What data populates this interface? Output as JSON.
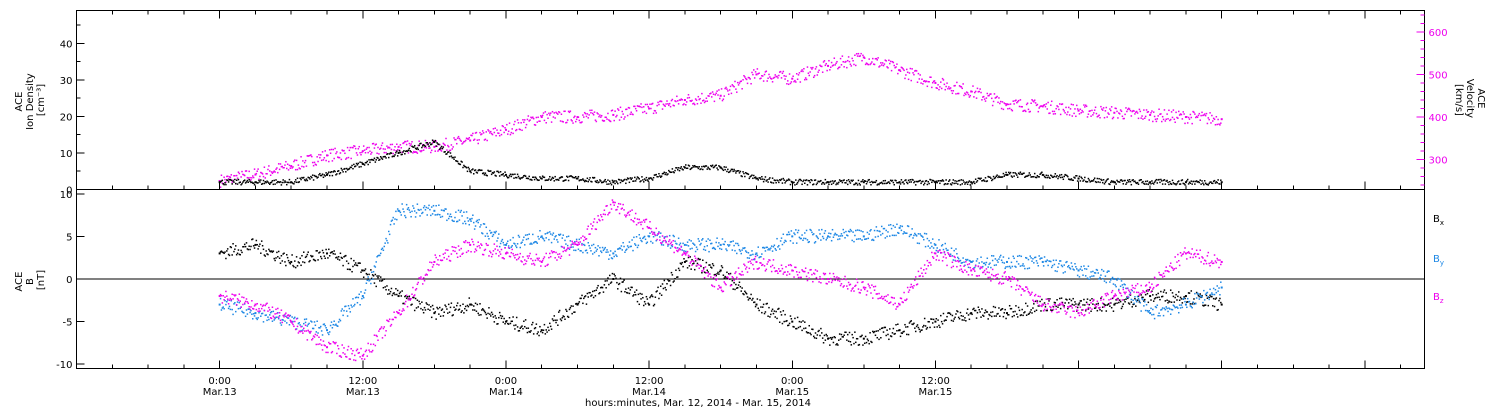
{
  "chart_data": [
    {
      "type": "scatter",
      "panel": "ACE plasma (top)",
      "ylabel_left": [
        "ACE",
        "Ion Density",
        "[cm⁻³]"
      ],
      "ylabel_right": [
        "ACE",
        "Velocity",
        "[km/s]"
      ],
      "ylim_left": [
        0,
        49
      ],
      "ylim_right": [
        230,
        650
      ],
      "yticks_left": [
        "0",
        "10",
        "20",
        "30",
        "40"
      ],
      "yticks_right": [
        "300",
        "400",
        "500",
        "600"
      ],
      "series": [
        {
          "axis": "left",
          "color": "#000000",
          "x": [
            0,
            3,
            6,
            9,
            12,
            15,
            18,
            21,
            24,
            27,
            30,
            33,
            36,
            39,
            42,
            45,
            48,
            51,
            54,
            57,
            60,
            63,
            66,
            69,
            72,
            75,
            78,
            81,
            84
          ],
          "y": [
            2,
            2,
            2,
            4,
            7,
            10,
            13,
            5,
            4,
            3,
            3,
            2,
            3,
            6,
            6,
            3,
            2,
            2,
            2,
            2,
            2,
            2,
            4,
            4,
            3,
            2,
            2,
            2,
            2
          ]
        },
        {
          "axis": "right",
          "color": "#ee00ee",
          "x": [
            0,
            3,
            6,
            9,
            12,
            15,
            18,
            21,
            24,
            27,
            30,
            33,
            36,
            39,
            42,
            45,
            48,
            51,
            54,
            57,
            60,
            63,
            66,
            69,
            72,
            75,
            78,
            81,
            84
          ],
          "y": [
            250,
            265,
            285,
            310,
            320,
            330,
            330,
            345,
            370,
            400,
            400,
            405,
            420,
            440,
            450,
            500,
            490,
            520,
            540,
            510,
            480,
            460,
            430,
            425,
            415,
            410,
            405,
            400,
            395
          ]
        }
      ]
    },
    {
      "type": "scatter",
      "panel": "ACE magnetic field (bottom)",
      "ylabel": [
        "ACE",
        "B",
        "[nT]"
      ],
      "ylim": [
        -10.5,
        10.5
      ],
      "yticks": [
        "-10",
        "-5",
        "0",
        "5",
        "10"
      ],
      "series": [
        {
          "name": "Bx",
          "color": "#000000",
          "x": [
            0,
            3,
            6,
            9,
            12,
            15,
            18,
            21,
            24,
            27,
            30,
            33,
            36,
            39,
            42,
            45,
            48,
            51,
            54,
            57,
            60,
            63,
            66,
            69,
            72,
            75,
            78,
            81,
            84
          ],
          "y": [
            3,
            4,
            2,
            3,
            1,
            -2,
            -4,
            -3,
            -5,
            -6,
            -3,
            0,
            -3,
            2,
            1,
            -3,
            -5,
            -7,
            -7,
            -6,
            -5,
            -4,
            -4,
            -3,
            -3,
            -3,
            -2,
            -2,
            -3
          ]
        },
        {
          "name": "By",
          "color": "#1e88e5",
          "x": [
            0,
            3,
            6,
            9,
            12,
            15,
            18,
            21,
            24,
            27,
            30,
            33,
            36,
            39,
            42,
            45,
            48,
            51,
            54,
            57,
            60,
            63,
            66,
            69,
            72,
            75,
            78,
            81,
            84
          ],
          "y": [
            -3,
            -4,
            -5,
            -6,
            -2,
            8,
            8,
            7,
            4,
            5,
            4,
            3,
            5,
            4,
            4,
            3,
            5,
            5,
            5,
            6,
            4,
            2,
            2,
            2,
            1,
            0,
            -4,
            -3,
            -1
          ]
        },
        {
          "name": "Bz",
          "color": "#ee00ee",
          "x": [
            0,
            3,
            6,
            9,
            12,
            15,
            18,
            21,
            24,
            27,
            30,
            33,
            36,
            39,
            42,
            45,
            48,
            51,
            54,
            57,
            60,
            63,
            66,
            69,
            72,
            75,
            78,
            81,
            84
          ],
          "y": [
            -2,
            -3,
            -5,
            -8,
            -9,
            -4,
            2,
            4,
            3,
            2,
            4,
            9,
            6,
            3,
            -1,
            2,
            1,
            0,
            -1,
            -3,
            3,
            1,
            0,
            -3,
            -4,
            -2,
            -1,
            3,
            2
          ]
        }
      ]
    }
  ],
  "legend": {
    "bx": {
      "main": "B",
      "sub": "x"
    },
    "by": {
      "main": "B",
      "sub": "y"
    },
    "bz": {
      "main": "B",
      "sub": "z"
    }
  },
  "xaxis": {
    "xlim": [
      -12,
      101
    ],
    "ticks": [
      {
        "x": 0,
        "time": "0:00",
        "date": "Mar.13"
      },
      {
        "x": 12,
        "time": "12:00",
        "date": "Mar.13"
      },
      {
        "x": 24,
        "time": "0:00",
        "date": "Mar.14"
      },
      {
        "x": 36,
        "time": "12:00",
        "date": "Mar.14"
      },
      {
        "x": 48,
        "time": "0:00",
        "date": "Mar.15"
      },
      {
        "x": 60,
        "time": "12:00",
        "date": "Mar.15"
      }
    ],
    "label": "hours:minutes, Mar. 12, 2014 - Mar. 15, 2014"
  }
}
